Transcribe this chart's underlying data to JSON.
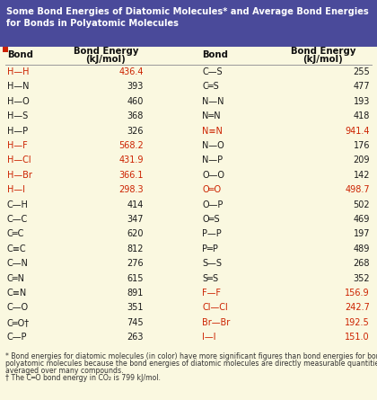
{
  "title_line1": "Some Bond Energies of Diatomic Molecules* and Average Bond Energies",
  "title_line2": "for Bonds in Polyatomic Molecules",
  "title_bg": "#4a4a9a",
  "title_color": "#ffffff",
  "table_bg": "#faf8e0",
  "normal_color": "#1a1a1a",
  "highlight_color": "#cc2200",
  "left_bonds": [
    "H—H",
    "H—N",
    "H—O",
    "H—S",
    "H—P",
    "H—F",
    "H—Cl",
    "H—Br",
    "H—I",
    "C—H",
    "C—C",
    "C═C",
    "C≡C",
    "C—N",
    "C═N",
    "C≡N",
    "C—O",
    "C═O†",
    "C—P"
  ],
  "left_values": [
    "436.4",
    "393",
    "460",
    "368",
    "326",
    "568.2",
    "431.9",
    "366.1",
    "298.3",
    "414",
    "347",
    "620",
    "812",
    "276",
    "615",
    "891",
    "351",
    "745",
    "263"
  ],
  "left_hi": [
    true,
    false,
    false,
    false,
    false,
    true,
    true,
    true,
    true,
    false,
    false,
    false,
    false,
    false,
    false,
    false,
    false,
    false,
    false
  ],
  "right_bonds": [
    "C—S",
    "C═S",
    "N—N",
    "N═N",
    "N≡N",
    "N—O",
    "N—P",
    "O—O",
    "O═O",
    "O—P",
    "O═S",
    "P—P",
    "P═P",
    "S—S",
    "S═S",
    "F—F",
    "Cl—Cl",
    "Br—Br",
    "I—I"
  ],
  "right_values": [
    "255",
    "477",
    "193",
    "418",
    "941.4",
    "176",
    "209",
    "142",
    "498.7",
    "502",
    "469",
    "197",
    "489",
    "268",
    "352",
    "156.9",
    "242.7",
    "192.5",
    "151.0"
  ],
  "right_hi_bond": [
    false,
    false,
    false,
    false,
    true,
    false,
    false,
    false,
    true,
    false,
    false,
    false,
    false,
    false,
    false,
    true,
    true,
    true,
    true
  ],
  "right_hi_val": [
    false,
    false,
    false,
    false,
    true,
    false,
    false,
    false,
    true,
    false,
    false,
    false,
    false,
    false,
    false,
    true,
    true,
    true,
    true
  ],
  "fn1": "* Bond energies for diatomic molecules (in color) have more significant figures than bond energies for bonds in",
  "fn2": "polyatomic molecules because the bond energies of diatomic molecules are directly measurable quantities and not",
  "fn3": "averaged over many compounds.",
  "fn4": "† The C═O bond energy in CO₂ is 799 kJ/mol."
}
